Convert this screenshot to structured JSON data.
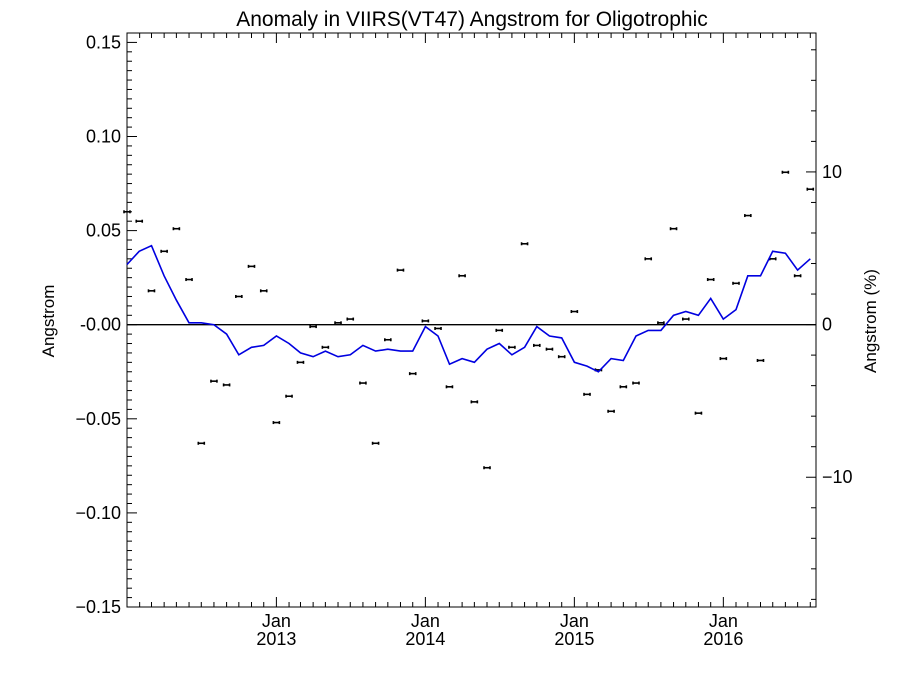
{
  "chart_data": {
    "type": "scatter",
    "title": "Anomaly in VIIRS(VT47) Angstrom for Oligotrophic",
    "ylabel": "Angstrom",
    "y2label": "Angstrom (%)",
    "ylim": [
      -0.15,
      0.155
    ],
    "y2lim": [
      -18.5,
      19.1
    ],
    "xlim": [
      "2012-01-01",
      "2016-08-15"
    ],
    "y_ticks": [
      {
        "value": 0.15,
        "label": "0.15"
      },
      {
        "value": 0.1,
        "label": "0.10"
      },
      {
        "value": 0.05,
        "label": "0.05"
      },
      {
        "value": 0.0,
        "label": "-0.00"
      },
      {
        "value": -0.05,
        "label": "−0.05"
      },
      {
        "value": -0.1,
        "label": "−0.10"
      },
      {
        "value": -0.15,
        "label": "−0.15"
      }
    ],
    "y2_ticks": [
      {
        "value": 10,
        "label": "10"
      },
      {
        "value": 0,
        "label": "0"
      },
      {
        "value": -10,
        "label": "−10"
      }
    ],
    "x_ticks": [
      {
        "value": "2013-01-01",
        "label1": "Jan",
        "label2": "2013"
      },
      {
        "value": "2014-01-01",
        "label1": "Jan",
        "label2": "2014"
      },
      {
        "value": "2015-01-01",
        "label1": "Jan",
        "label2": "2015"
      },
      {
        "value": "2016-01-01",
        "label1": "Jan",
        "label2": "2016"
      }
    ],
    "zero_line": true,
    "series": [
      {
        "kind": "points",
        "color": "#000000",
        "points": [
          {
            "x": "2012-01-01",
            "y": 0.06
          },
          {
            "x": "2012-01-31",
            "y": 0.055
          },
          {
            "x": "2012-03-01",
            "y": 0.018
          },
          {
            "x": "2012-04-01",
            "y": 0.039
          },
          {
            "x": "2012-05-01",
            "y": 0.051
          },
          {
            "x": "2012-06-01",
            "y": 0.024
          },
          {
            "x": "2012-07-01",
            "y": -0.063
          },
          {
            "x": "2012-08-01",
            "y": -0.03
          },
          {
            "x": "2012-09-01",
            "y": -0.032
          },
          {
            "x": "2012-10-01",
            "y": 0.015
          },
          {
            "x": "2012-11-01",
            "y": 0.031
          },
          {
            "x": "2012-12-01",
            "y": 0.018
          },
          {
            "x": "2013-01-01",
            "y": -0.052
          },
          {
            "x": "2013-02-01",
            "y": -0.038
          },
          {
            "x": "2013-03-01",
            "y": -0.02
          },
          {
            "x": "2013-04-01",
            "y": -0.001
          },
          {
            "x": "2013-05-01",
            "y": -0.012
          },
          {
            "x": "2013-06-01",
            "y": 0.001
          },
          {
            "x": "2013-07-01",
            "y": 0.003
          },
          {
            "x": "2013-08-01",
            "y": -0.031
          },
          {
            "x": "2013-09-01",
            "y": -0.063
          },
          {
            "x": "2013-10-01",
            "y": -0.008
          },
          {
            "x": "2013-11-01",
            "y": 0.029
          },
          {
            "x": "2013-12-01",
            "y": -0.026
          },
          {
            "x": "2014-01-01",
            "y": 0.002
          },
          {
            "x": "2014-02-01",
            "y": -0.002
          },
          {
            "x": "2014-03-01",
            "y": -0.033
          },
          {
            "x": "2014-04-01",
            "y": 0.026
          },
          {
            "x": "2014-05-01",
            "y": -0.041
          },
          {
            "x": "2014-06-01",
            "y": -0.076
          },
          {
            "x": "2014-07-01",
            "y": -0.003
          },
          {
            "x": "2014-08-01",
            "y": -0.012
          },
          {
            "x": "2014-09-01",
            "y": 0.043
          },
          {
            "x": "2014-10-01",
            "y": -0.011
          },
          {
            "x": "2014-11-01",
            "y": -0.013
          },
          {
            "x": "2014-12-01",
            "y": -0.017
          },
          {
            "x": "2015-01-01",
            "y": 0.007
          },
          {
            "x": "2015-02-01",
            "y": -0.037
          },
          {
            "x": "2015-03-01",
            "y": -0.024
          },
          {
            "x": "2015-04-01",
            "y": -0.046
          },
          {
            "x": "2015-05-01",
            "y": -0.033
          },
          {
            "x": "2015-06-01",
            "y": -0.031
          },
          {
            "x": "2015-07-01",
            "y": 0.035
          },
          {
            "x": "2015-08-01",
            "y": 0.001
          },
          {
            "x": "2015-09-01",
            "y": 0.051
          },
          {
            "x": "2015-10-01",
            "y": 0.003
          },
          {
            "x": "2015-11-01",
            "y": -0.047
          },
          {
            "x": "2015-12-01",
            "y": 0.024
          },
          {
            "x": "2016-01-01",
            "y": -0.018
          },
          {
            "x": "2016-02-01",
            "y": 0.022
          },
          {
            "x": "2016-03-01",
            "y": 0.058
          },
          {
            "x": "2016-04-01",
            "y": -0.019
          },
          {
            "x": "2016-05-01",
            "y": 0.035
          },
          {
            "x": "2016-06-01",
            "y": 0.081
          },
          {
            "x": "2016-07-01",
            "y": 0.026
          },
          {
            "x": "2016-08-01",
            "y": 0.072
          }
        ]
      },
      {
        "kind": "line",
        "color": "#0000e0",
        "points": [
          {
            "x": "2012-01-01",
            "y": 0.032
          },
          {
            "x": "2012-01-31",
            "y": 0.039
          },
          {
            "x": "2012-03-01",
            "y": 0.042
          },
          {
            "x": "2012-04-01",
            "y": 0.026
          },
          {
            "x": "2012-05-01",
            "y": 0.013
          },
          {
            "x": "2012-06-01",
            "y": 0.001
          },
          {
            "x": "2012-07-01",
            "y": 0.001
          },
          {
            "x": "2012-08-01",
            "y": 0.0
          },
          {
            "x": "2012-09-01",
            "y": -0.005
          },
          {
            "x": "2012-10-01",
            "y": -0.016
          },
          {
            "x": "2012-11-01",
            "y": -0.012
          },
          {
            "x": "2012-12-01",
            "y": -0.011
          },
          {
            "x": "2013-01-01",
            "y": -0.006
          },
          {
            "x": "2013-02-01",
            "y": -0.01
          },
          {
            "x": "2013-03-01",
            "y": -0.015
          },
          {
            "x": "2013-04-01",
            "y": -0.017
          },
          {
            "x": "2013-05-01",
            "y": -0.014
          },
          {
            "x": "2013-06-01",
            "y": -0.017
          },
          {
            "x": "2013-07-01",
            "y": -0.016
          },
          {
            "x": "2013-08-01",
            "y": -0.011
          },
          {
            "x": "2013-09-01",
            "y": -0.014
          },
          {
            "x": "2013-10-01",
            "y": -0.013
          },
          {
            "x": "2013-11-01",
            "y": -0.014
          },
          {
            "x": "2013-12-01",
            "y": -0.014
          },
          {
            "x": "2014-01-01",
            "y": -0.001
          },
          {
            "x": "2014-02-01",
            "y": -0.006
          },
          {
            "x": "2014-03-01",
            "y": -0.021
          },
          {
            "x": "2014-04-01",
            "y": -0.018
          },
          {
            "x": "2014-05-01",
            "y": -0.02
          },
          {
            "x": "2014-06-01",
            "y": -0.013
          },
          {
            "x": "2014-07-01",
            "y": -0.01
          },
          {
            "x": "2014-08-01",
            "y": -0.016
          },
          {
            "x": "2014-09-01",
            "y": -0.012
          },
          {
            "x": "2014-10-01",
            "y": -0.001
          },
          {
            "x": "2014-11-01",
            "y": -0.006
          },
          {
            "x": "2014-12-01",
            "y": -0.007
          },
          {
            "x": "2015-01-01",
            "y": -0.02
          },
          {
            "x": "2015-02-01",
            "y": -0.022
          },
          {
            "x": "2015-03-01",
            "y": -0.025
          },
          {
            "x": "2015-04-01",
            "y": -0.018
          },
          {
            "x": "2015-05-01",
            "y": -0.019
          },
          {
            "x": "2015-06-01",
            "y": -0.006
          },
          {
            "x": "2015-07-01",
            "y": -0.003
          },
          {
            "x": "2015-08-01",
            "y": -0.003
          },
          {
            "x": "2015-09-01",
            "y": 0.005
          },
          {
            "x": "2015-10-01",
            "y": 0.007
          },
          {
            "x": "2015-11-01",
            "y": 0.005
          },
          {
            "x": "2015-12-01",
            "y": 0.014
          },
          {
            "x": "2016-01-01",
            "y": 0.003
          },
          {
            "x": "2016-02-01",
            "y": 0.008
          },
          {
            "x": "2016-03-01",
            "y": 0.026
          },
          {
            "x": "2016-04-01",
            "y": 0.026
          },
          {
            "x": "2016-05-01",
            "y": 0.039
          },
          {
            "x": "2016-06-01",
            "y": 0.038
          },
          {
            "x": "2016-07-01",
            "y": 0.029
          },
          {
            "x": "2016-08-01",
            "y": 0.035
          }
        ]
      }
    ]
  }
}
